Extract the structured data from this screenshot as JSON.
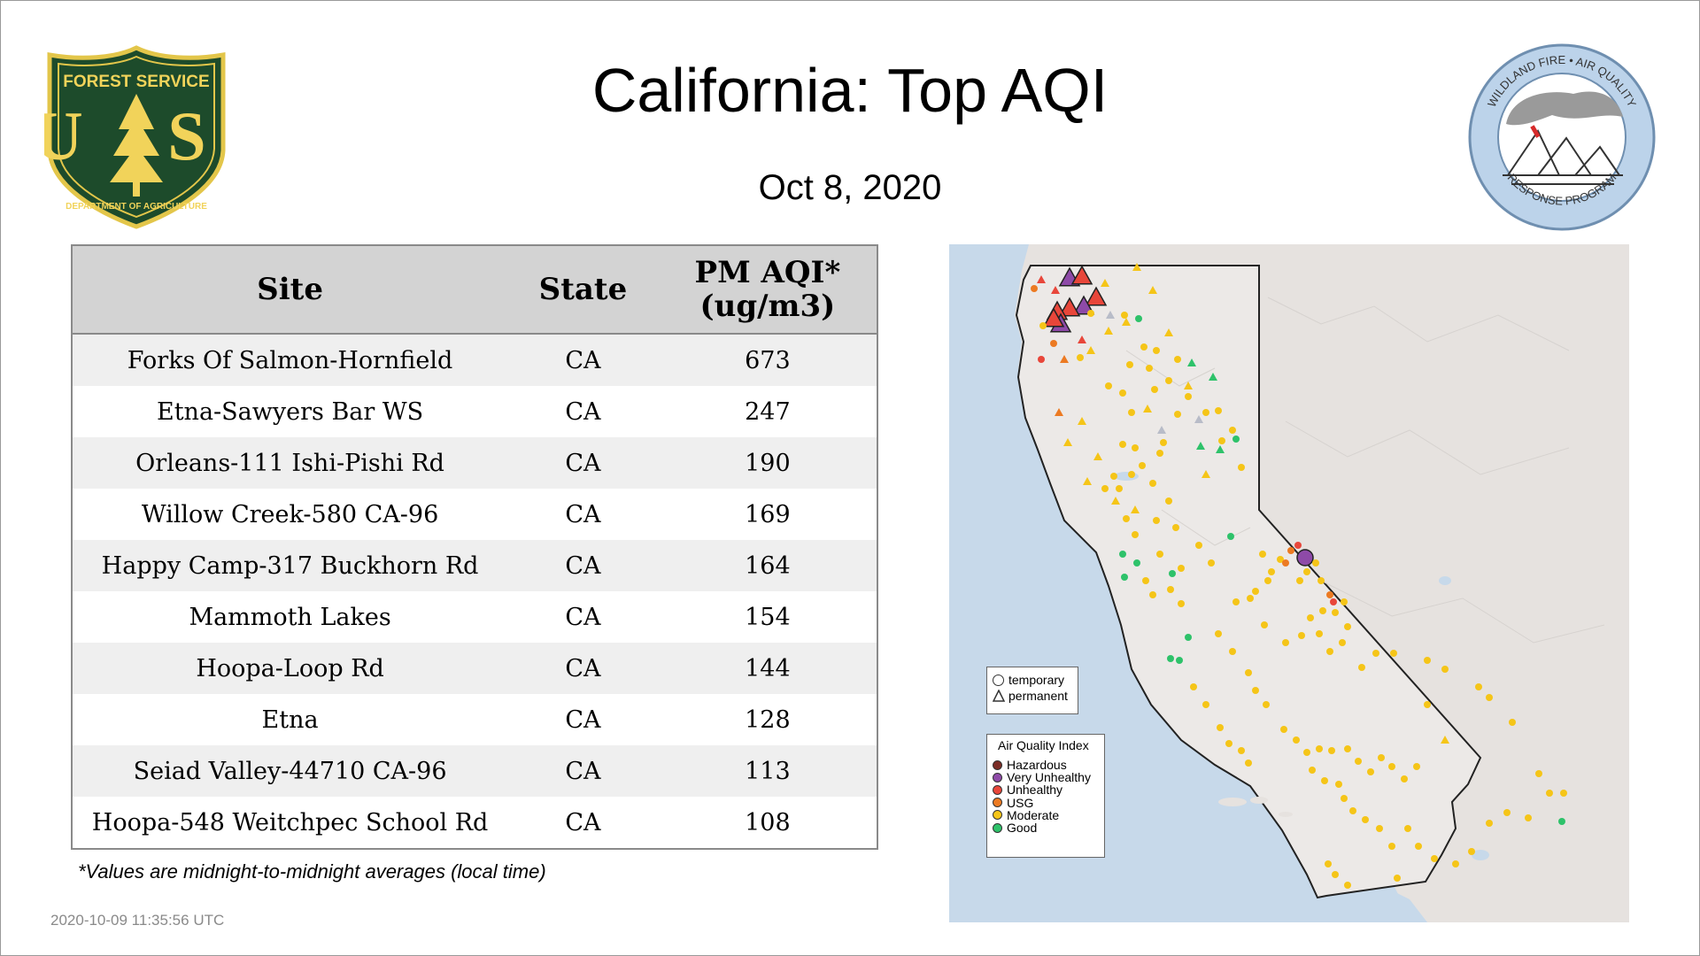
{
  "header": {
    "title": "California: Top AQI",
    "date": "Oct  8, 2020"
  },
  "logos": {
    "forest_service": {
      "top": "FOREST SERVICE",
      "mark": "U S",
      "bottom": "DEPARTMENT OF AGRICULTURE"
    },
    "wildland_fire": {
      "top": "WILDLAND FIRE • AIR QUALITY",
      "bottom": "RESPONSE PROGRAM"
    }
  },
  "table": {
    "headers": {
      "site": "Site",
      "state": "State",
      "aqi_line1": "PM AQI*",
      "aqi_line2": "(ug/m3)"
    },
    "rows": [
      {
        "site": "Forks Of Salmon-Hornfield",
        "state": "CA",
        "aqi": "673"
      },
      {
        "site": "Etna-Sawyers Bar WS",
        "state": "CA",
        "aqi": "247"
      },
      {
        "site": "Orleans-111 Ishi-Pishi Rd",
        "state": "CA",
        "aqi": "190"
      },
      {
        "site": "Willow Creek-580 CA-96",
        "state": "CA",
        "aqi": "169"
      },
      {
        "site": "Happy Camp-317 Buckhorn Rd",
        "state": "CA",
        "aqi": "164"
      },
      {
        "site": "Mammoth Lakes",
        "state": "CA",
        "aqi": "154"
      },
      {
        "site": "Hoopa-Loop Rd",
        "state": "CA",
        "aqi": "144"
      },
      {
        "site": "Etna",
        "state": "CA",
        "aqi": "128"
      },
      {
        "site": "Seiad Valley-44710 CA-96",
        "state": "CA",
        "aqi": "113"
      },
      {
        "site": "Hoopa-548 Weitchpec School Rd",
        "state": "CA",
        "aqi": "108"
      }
    ]
  },
  "footnote": "*Values are midnight-to-midnight averages (local time)",
  "timestamp": "2020-10-09 11:35:56 UTC",
  "map_legend": {
    "shape": {
      "temporary": "temporary",
      "permanent": "permanent"
    },
    "aqi_title": "Air Quality Index",
    "categories": [
      {
        "label": "Hazardous",
        "color": "#7b2d26"
      },
      {
        "label": "Very Unhealthy",
        "color": "#8e4aa8"
      },
      {
        "label": "Unhealthy",
        "color": "#e8463a"
      },
      {
        "label": "USG",
        "color": "#ec7a22"
      },
      {
        "label": "Moderate",
        "color": "#f5c518"
      },
      {
        "label": "Good",
        "color": "#2ec26a"
      }
    ]
  },
  "colors": {
    "ocean": "#c7d9ea",
    "land": "#e9e6e4",
    "header_bg": "#d3d3d3",
    "no_data": "#b8bcc8"
  }
}
